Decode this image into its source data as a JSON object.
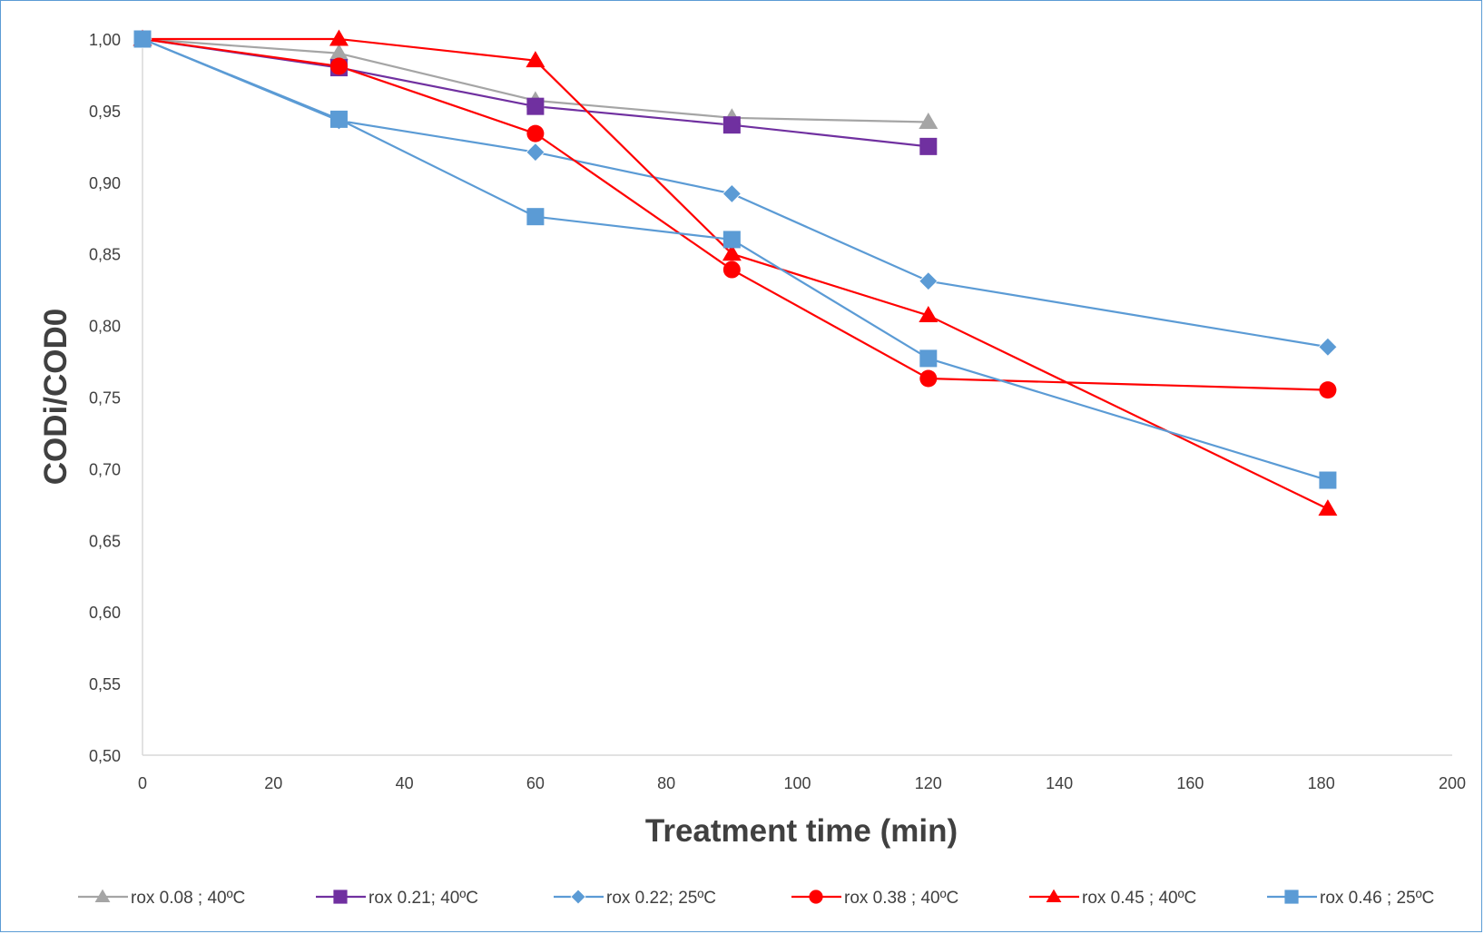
{
  "chart_data": {
    "type": "line",
    "title": "",
    "xlabel": "Treatment time (min)",
    "ylabel": "CODi/COD0",
    "xlim": [
      0,
      200
    ],
    "ylim": [
      0.5,
      1.0
    ],
    "x_ticks": [
      0,
      20,
      40,
      60,
      80,
      100,
      120,
      140,
      160,
      180,
      200
    ],
    "x_tick_labels": [
      "0",
      "20",
      "40",
      "60",
      "80",
      "100",
      "120",
      "140",
      "160",
      "180",
      "200"
    ],
    "y_ticks": [
      0.5,
      0.55,
      0.6,
      0.65,
      0.7,
      0.75,
      0.8,
      0.85,
      0.9,
      0.95,
      1.0
    ],
    "y_tick_labels": [
      "0,50",
      "0,55",
      "0,60",
      "0,65",
      "0,70",
      "0,75",
      "0,80",
      "0,85",
      "0,90",
      "0,95",
      "1,00"
    ],
    "grid": false,
    "legend_position": "bottom",
    "series": [
      {
        "name": "rox 0.08 ; 40ºC",
        "color": "#a5a5a5",
        "marker": "triangle",
        "x": [
          0,
          30,
          60,
          90,
          120
        ],
        "y": [
          1.0,
          0.99,
          0.957,
          0.945,
          0.942
        ]
      },
      {
        "name": "rox 0.21; 40ºC",
        "color": "#7030a0",
        "marker": "square",
        "x": [
          0,
          30,
          60,
          90,
          120
        ],
        "y": [
          1.0,
          0.98,
          0.953,
          0.94,
          0.925
        ]
      },
      {
        "name": "rox 0.22; 25ºC",
        "color": "#5b9bd5",
        "marker": "diamond",
        "x": [
          0,
          30,
          60,
          90,
          120,
          181
        ],
        "y": [
          1.0,
          0.943,
          0.921,
          0.892,
          0.831,
          0.785
        ]
      },
      {
        "name": "rox 0.38 ; 40ºC",
        "color": "#ff0000",
        "marker": "circle",
        "x": [
          0,
          30,
          60,
          90,
          120,
          181
        ],
        "y": [
          1.0,
          0.981,
          0.934,
          0.839,
          0.763,
          0.755
        ]
      },
      {
        "name": "rox 0.45 ; 40ºC",
        "color": "#ff0000",
        "marker": "triangle",
        "x": [
          0,
          30,
          60,
          90,
          120,
          181
        ],
        "y": [
          1.0,
          1.0,
          0.985,
          0.85,
          0.807,
          0.672
        ]
      },
      {
        "name": "rox 0.46 ; 25ºC",
        "color": "#5b9bd5",
        "marker": "square",
        "x": [
          0,
          30,
          60,
          90,
          120,
          181
        ],
        "y": [
          1.0,
          0.944,
          0.876,
          0.86,
          0.777,
          0.692
        ]
      }
    ]
  },
  "colors": {
    "axis": "#d9d9d9",
    "frame_border": "#5b9bd5",
    "text": "#404040"
  }
}
